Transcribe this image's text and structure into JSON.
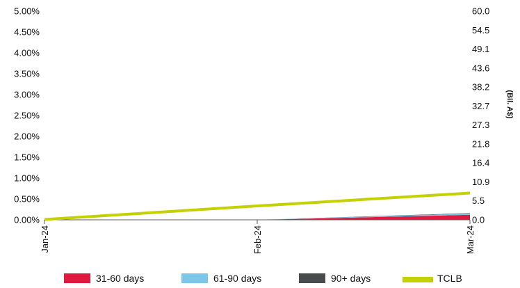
{
  "chart_data": {
    "type": "area",
    "categories": [
      "Jan-24",
      "Feb-24",
      "Mar-24"
    ],
    "left_axis": {
      "ticks": [
        "0.00%",
        "0.50%",
        "1.00%",
        "1.50%",
        "2.00%",
        "2.50%",
        "3.00%",
        "3.50%",
        "4.00%",
        "4.50%",
        "5.00%"
      ],
      "ylim": [
        0,
        5
      ]
    },
    "right_axis": {
      "label": "(Bil. A$)",
      "ticks": [
        "0.0",
        "5.5",
        "10.9",
        "16.4",
        "21.8",
        "27.3",
        "32.7",
        "38.2",
        "43.6",
        "49.1",
        "54.5",
        "60.0"
      ],
      "ylim": [
        0,
        60
      ]
    },
    "series": [
      {
        "name": "31-60 days",
        "type": "area",
        "axis": "left",
        "color": "#e0193f",
        "values": [
          0,
          0,
          0.12
        ]
      },
      {
        "name": "61-90 days",
        "type": "area",
        "axis": "left",
        "color": "#7cc6ea",
        "values": [
          0,
          0,
          0.03
        ]
      },
      {
        "name": "90+ days",
        "type": "area",
        "axis": "left",
        "color": "#4a4b4d",
        "values": [
          0,
          0,
          0.01
        ]
      },
      {
        "name": "TCLB",
        "type": "line",
        "axis": "right",
        "color": "#c5d000",
        "values": [
          0.1,
          4.0,
          7.7
        ]
      }
    ],
    "grid": false,
    "legend_position": "bottom"
  }
}
